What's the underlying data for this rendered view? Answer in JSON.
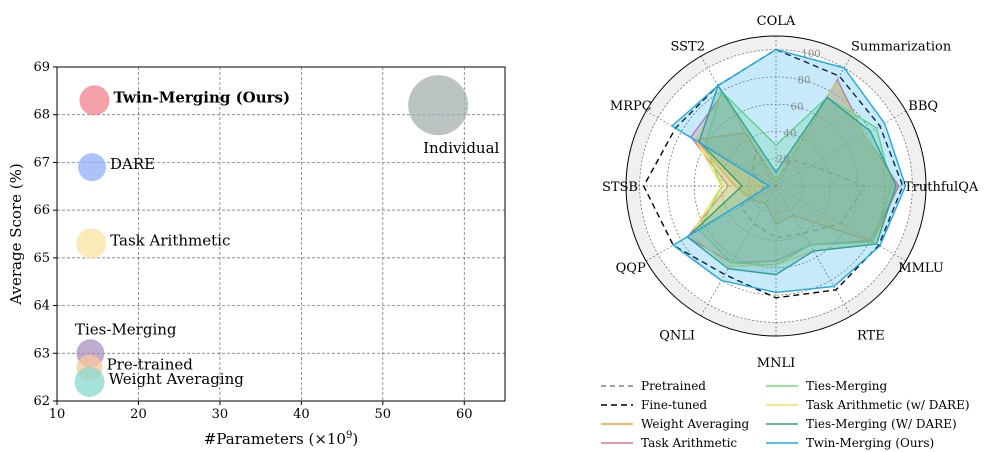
{
  "chart_data": [
    {
      "type": "scatter",
      "xlabel": "#Parameters (×10",
      "xlabel_sup": "9",
      "xlabel_close": ")",
      "ylabel": "Average Score (%)",
      "xlim": [
        10,
        65
      ],
      "ylim": [
        62,
        69
      ],
      "xticks": [
        10,
        20,
        30,
        40,
        50,
        60
      ],
      "yticks": [
        62,
        63,
        64,
        65,
        66,
        67,
        68,
        69
      ],
      "grid": true,
      "points": [
        {
          "name": "Twin-Merging (Ours)",
          "x": 14.6,
          "y": 68.3,
          "size": 15,
          "color": "#f0808c",
          "label_pos": "right",
          "bold": true
        },
        {
          "name": "DARE",
          "x": 14.3,
          "y": 66.9,
          "size": 14,
          "color": "#92aef5",
          "label_pos": "right",
          "bold": false
        },
        {
          "name": "Task Arithmetic",
          "x": 14.2,
          "y": 65.3,
          "size": 15,
          "color": "#fbe4a0",
          "label_pos": "right",
          "bold": false
        },
        {
          "name": "Ties-Merging",
          "x": 14.1,
          "y": 63.0,
          "size": 14,
          "color": "#a98ec0",
          "label_pos": "above",
          "bold": false
        },
        {
          "name": "Pre-trained",
          "x": 14.0,
          "y": 62.7,
          "size": 13,
          "color": "#f9c89a",
          "label_pos": "right",
          "bold": false
        },
        {
          "name": "Weight Averaging",
          "x": 14.0,
          "y": 62.4,
          "size": 15,
          "color": "#88d8d0",
          "label_pos": "right",
          "bold": false
        },
        {
          "name": "Individual",
          "x": 56.8,
          "y": 68.2,
          "size": 30,
          "color": "#a6afaf",
          "label_pos": "below",
          "bold": false
        }
      ]
    },
    {
      "type": "radar",
      "axes": [
        "COLA",
        "Summarization",
        "BBQ",
        "TruthfulQA",
        "MMLU",
        "RTE",
        "MNLI",
        "QNLI",
        "QQP",
        "STSB",
        "MRPC",
        "SST2"
      ],
      "rmax": 110,
      "rticks": [
        20,
        40,
        60,
        80,
        100
      ],
      "legend_position": "bottom",
      "series": [
        {
          "name": "Pretrained",
          "color": "#808080",
          "dash": "5,4",
          "fill": false,
          "values": [
            5,
            22,
            30,
            65,
            55,
            40,
            38,
            32,
            30,
            8,
            20,
            30
          ]
        },
        {
          "name": "Fine-tuned",
          "color": "#000000",
          "dash": "6,4",
          "fill": false,
          "values": [
            100,
            93,
            88,
            93,
            87,
            88,
            82,
            75,
            87,
            97,
            85,
            85
          ]
        },
        {
          "name": "Weight Averaging",
          "color": "#f0a030",
          "dash": "",
          "fill": true,
          "values": [
            5,
            88,
            75,
            90,
            82,
            25,
            28,
            15,
            20,
            30,
            68,
            45
          ]
        },
        {
          "name": "Task Arithmetic",
          "color": "#e070a0",
          "dash": "",
          "fill": true,
          "values": [
            5,
            90,
            75,
            90,
            80,
            50,
            55,
            65,
            75,
            35,
            72,
            78
          ]
        },
        {
          "name": "Ties-Merging",
          "color": "#70e070",
          "dash": "",
          "fill": true,
          "values": [
            30,
            75,
            85,
            85,
            82,
            50,
            58,
            65,
            65,
            40,
            60,
            80
          ]
        },
        {
          "name": "Task Arithmetic (w/ DARE)",
          "color": "#f0e060",
          "dash": "",
          "fill": true,
          "values": [
            5,
            88,
            75,
            88,
            85,
            55,
            58,
            68,
            72,
            40,
            68,
            78
          ]
        },
        {
          "name": "Ties-Merging (W/ DARE)",
          "color": "#30a080",
          "dash": "",
          "fill": true,
          "values": [
            10,
            75,
            80,
            88,
            85,
            55,
            65,
            70,
            75,
            25,
            65,
            85
          ]
        },
        {
          "name": "Twin-Merging (Ours)",
          "color": "#20a8e8",
          "dash": "",
          "fill": true,
          "values": [
            100,
            100,
            92,
            95,
            88,
            85,
            78,
            80,
            87,
            5,
            88,
            85
          ]
        }
      ]
    }
  ]
}
